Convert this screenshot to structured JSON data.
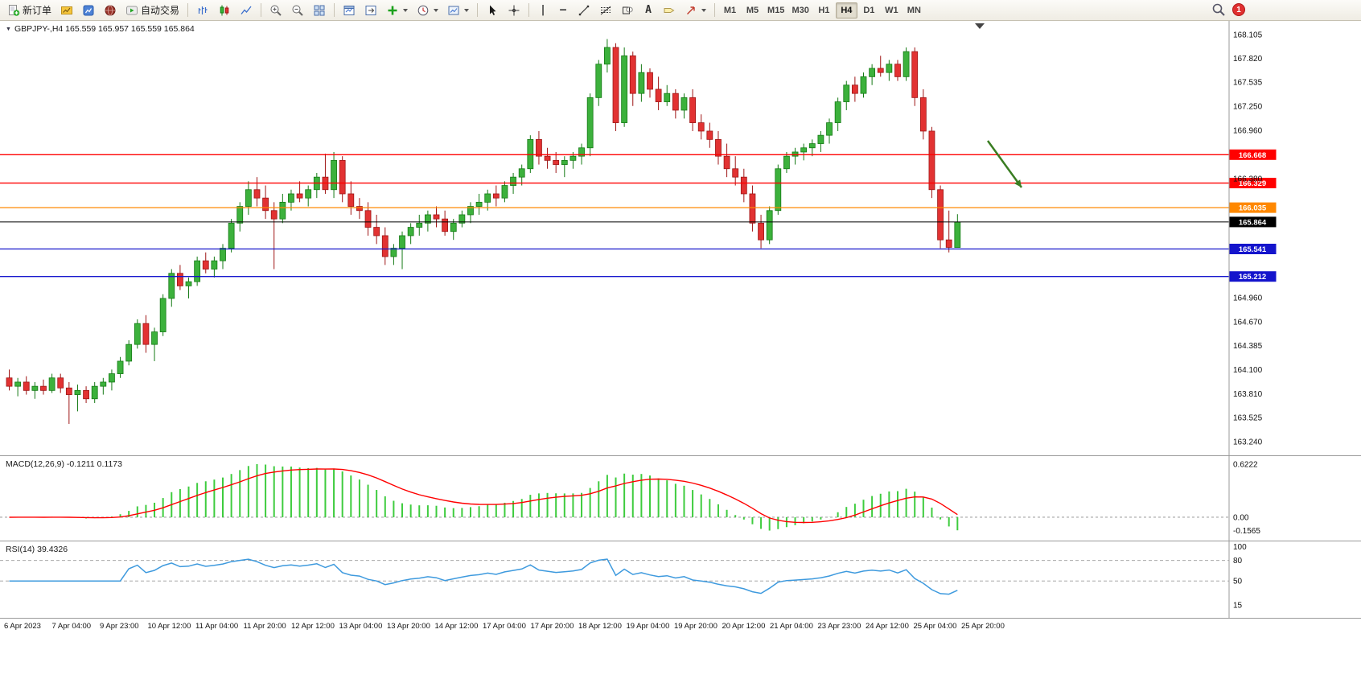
{
  "window": {
    "badge_count": "1"
  },
  "toolbar": {
    "new_order_label": "新订单",
    "autotrading_label": "自动交易",
    "icon_glyphs": {
      "vertical_line": "|",
      "horizontal_line": "—",
      "text": "A"
    },
    "timeframes": [
      "M1",
      "M5",
      "M15",
      "M30",
      "H1",
      "H4",
      "D1",
      "W1",
      "MN"
    ],
    "active_timeframe": "H4"
  },
  "chart": {
    "collapse_arrow": "▼",
    "symbol_label": "GBPJPY-,H4",
    "ohlc": "165.559 165.957 165.559 165.864"
  },
  "chart_data": {
    "type": "candlestick",
    "symbol": "GBPJPY",
    "timeframe": "H4",
    "ylim": [
      163.24,
      168.105
    ],
    "price_axis_ticks": [
      "168.105",
      "167.820",
      "167.535",
      "167.250",
      "166.960",
      "166.380",
      "164.960",
      "164.670",
      "164.385",
      "164.100",
      "163.810",
      "163.525",
      "163.240"
    ],
    "levels": [
      {
        "label": "166.668",
        "value": 166.668,
        "color": "#ff0000",
        "current": false
      },
      {
        "label": "166.329",
        "value": 166.329,
        "color": "#ff0000",
        "current": false
      },
      {
        "label": "166.035",
        "value": 166.035,
        "color": "#ff8800",
        "current": false
      },
      {
        "label": "165.864",
        "value": 165.864,
        "color": "#000000",
        "current": true
      },
      {
        "label": "165.541",
        "value": 165.541,
        "color": "#1414cc",
        "current": false
      },
      {
        "label": "165.212",
        "value": 165.212,
        "color": "#1414cc",
        "current": false
      }
    ],
    "current_price": "165.864",
    "time_labels": [
      "6 Apr 2023",
      "7 Apr 04:00",
      "9 Apr 23:00",
      "10 Apr 12:00",
      "11 Apr 04:00",
      "11 Apr 20:00",
      "12 Apr 12:00",
      "13 Apr 04:00",
      "13 Apr 20:00",
      "14 Apr 12:00",
      "17 Apr 04:00",
      "17 Apr 20:00",
      "18 Apr 12:00",
      "19 Apr 04:00",
      "19 Apr 20:00",
      "20 Apr 12:00",
      "21 Apr 04:00",
      "23 Apr 23:00",
      "24 Apr 12:00",
      "25 Apr 04:00",
      "25 Apr 20:00"
    ],
    "candles": [
      [
        164.0,
        164.1,
        163.85,
        163.9
      ],
      [
        163.9,
        164.0,
        163.78,
        163.95
      ],
      [
        163.95,
        164.02,
        163.8,
        163.85
      ],
      [
        163.85,
        163.95,
        163.75,
        163.9
      ],
      [
        163.9,
        163.98,
        163.8,
        163.85
      ],
      [
        163.85,
        164.05,
        163.82,
        164.0
      ],
      [
        164.0,
        164.05,
        163.82,
        163.88
      ],
      [
        163.88,
        163.95,
        163.45,
        163.8
      ],
      [
        163.8,
        163.92,
        163.6,
        163.85
      ],
      [
        163.85,
        163.9,
        163.7,
        163.75
      ],
      [
        163.75,
        163.95,
        163.7,
        163.9
      ],
      [
        163.9,
        164.0,
        163.8,
        163.95
      ],
      [
        163.95,
        164.1,
        163.85,
        164.05
      ],
      [
        164.05,
        164.25,
        164.0,
        164.2
      ],
      [
        164.2,
        164.45,
        164.15,
        164.4
      ],
      [
        164.4,
        164.7,
        164.35,
        164.65
      ],
      [
        164.65,
        164.75,
        164.3,
        164.4
      ],
      [
        164.4,
        164.6,
        164.2,
        164.55
      ],
      [
        164.55,
        165.0,
        164.5,
        164.95
      ],
      [
        164.95,
        165.3,
        164.85,
        165.25
      ],
      [
        165.25,
        165.35,
        165.05,
        165.1
      ],
      [
        165.1,
        165.2,
        164.95,
        165.15
      ],
      [
        165.15,
        165.45,
        165.1,
        165.4
      ],
      [
        165.4,
        165.5,
        165.25,
        165.3
      ],
      [
        165.3,
        165.45,
        165.2,
        165.4
      ],
      [
        165.4,
        165.6,
        165.3,
        165.55
      ],
      [
        165.55,
        165.9,
        165.5,
        165.85
      ],
      [
        165.85,
        166.1,
        165.75,
        166.05
      ],
      [
        166.05,
        166.35,
        165.95,
        166.25
      ],
      [
        166.25,
        166.4,
        166.05,
        166.15
      ],
      [
        166.15,
        166.3,
        165.9,
        166.0
      ],
      [
        166.0,
        166.1,
        165.3,
        165.9
      ],
      [
        165.9,
        166.2,
        165.85,
        166.1
      ],
      [
        166.1,
        166.25,
        166.0,
        166.2
      ],
      [
        166.2,
        166.35,
        166.1,
        166.15
      ],
      [
        166.15,
        166.3,
        166.05,
        166.25
      ],
      [
        166.25,
        166.45,
        166.15,
        166.4
      ],
      [
        166.4,
        166.68,
        166.2,
        166.25
      ],
      [
        166.25,
        166.7,
        166.15,
        166.6
      ],
      [
        166.6,
        166.65,
        166.1,
        166.2
      ],
      [
        166.2,
        166.35,
        165.95,
        166.05
      ],
      [
        166.05,
        166.15,
        165.9,
        166.0
      ],
      [
        166.0,
        166.1,
        165.7,
        165.8
      ],
      [
        165.8,
        165.95,
        165.6,
        165.7
      ],
      [
        165.7,
        165.8,
        165.35,
        165.45
      ],
      [
        165.45,
        165.6,
        165.35,
        165.55
      ],
      [
        165.55,
        165.75,
        165.3,
        165.7
      ],
      [
        165.7,
        165.85,
        165.6,
        165.8
      ],
      [
        165.8,
        165.95,
        165.7,
        165.85
      ],
      [
        165.85,
        166.0,
        165.75,
        165.95
      ],
      [
        165.95,
        166.05,
        165.8,
        165.9
      ],
      [
        165.9,
        166.0,
        165.7,
        165.75
      ],
      [
        165.75,
        165.9,
        165.65,
        165.85
      ],
      [
        165.85,
        166.0,
        165.8,
        165.95
      ],
      [
        165.95,
        166.1,
        165.85,
        166.05
      ],
      [
        166.05,
        166.2,
        165.95,
        166.1
      ],
      [
        166.1,
        166.25,
        166.0,
        166.2
      ],
      [
        166.2,
        166.3,
        166.05,
        166.15
      ],
      [
        166.15,
        166.35,
        166.1,
        166.3
      ],
      [
        166.3,
        166.45,
        166.2,
        166.4
      ],
      [
        166.4,
        166.55,
        166.3,
        166.5
      ],
      [
        166.5,
        166.9,
        166.45,
        166.85
      ],
      [
        166.85,
        166.95,
        166.55,
        166.65
      ],
      [
        166.65,
        166.75,
        166.5,
        166.6
      ],
      [
        166.6,
        166.7,
        166.45,
        166.55
      ],
      [
        166.55,
        166.65,
        166.4,
        166.6
      ],
      [
        166.6,
        166.7,
        166.5,
        166.65
      ],
      [
        166.65,
        166.8,
        166.55,
        166.75
      ],
      [
        166.75,
        167.4,
        166.65,
        167.35
      ],
      [
        167.35,
        167.8,
        167.25,
        167.75
      ],
      [
        167.75,
        168.05,
        167.65,
        167.95
      ],
      [
        167.95,
        168.0,
        166.95,
        167.05
      ],
      [
        167.05,
        167.95,
        167.0,
        167.85
      ],
      [
        167.85,
        167.9,
        167.25,
        167.4
      ],
      [
        167.4,
        167.75,
        167.3,
        167.65
      ],
      [
        167.65,
        167.7,
        167.35,
        167.45
      ],
      [
        167.45,
        167.6,
        167.2,
        167.3
      ],
      [
        167.3,
        167.5,
        167.25,
        167.4
      ],
      [
        167.4,
        167.45,
        167.1,
        167.2
      ],
      [
        167.2,
        167.4,
        167.1,
        167.35
      ],
      [
        167.35,
        167.45,
        166.95,
        167.05
      ],
      [
        167.05,
        167.15,
        166.85,
        166.95
      ],
      [
        166.95,
        167.05,
        166.75,
        166.85
      ],
      [
        166.85,
        166.95,
        166.55,
        166.65
      ],
      [
        166.65,
        166.8,
        166.4,
        166.5
      ],
      [
        166.5,
        166.65,
        166.3,
        166.4
      ],
      [
        166.4,
        166.5,
        166.1,
        166.2
      ],
      [
        166.2,
        166.3,
        165.75,
        165.85
      ],
      [
        165.85,
        165.95,
        165.55,
        165.65
      ],
      [
        165.65,
        166.05,
        165.6,
        166.0
      ],
      [
        166.0,
        166.55,
        165.95,
        166.5
      ],
      [
        166.5,
        166.7,
        166.45,
        166.65
      ],
      [
        166.65,
        166.75,
        166.55,
        166.7
      ],
      [
        166.7,
        166.8,
        166.6,
        166.75
      ],
      [
        166.75,
        166.85,
        166.65,
        166.8
      ],
      [
        166.8,
        166.95,
        166.7,
        166.9
      ],
      [
        166.9,
        167.1,
        166.8,
        167.05
      ],
      [
        167.05,
        167.35,
        166.95,
        167.3
      ],
      [
        167.3,
        167.55,
        167.2,
        167.5
      ],
      [
        167.5,
        167.6,
        167.3,
        167.4
      ],
      [
        167.4,
        167.65,
        167.35,
        167.6
      ],
      [
        167.6,
        167.75,
        167.5,
        167.7
      ],
      [
        167.7,
        167.85,
        167.6,
        167.65
      ],
      [
        167.65,
        167.8,
        167.55,
        167.75
      ],
      [
        167.75,
        167.8,
        167.55,
        167.6
      ],
      [
        167.6,
        167.95,
        167.55,
        167.9
      ],
      [
        167.9,
        167.95,
        167.25,
        167.35
      ],
      [
        167.35,
        167.45,
        166.85,
        166.95
      ],
      [
        166.95,
        167.0,
        166.15,
        166.25
      ],
      [
        166.25,
        166.3,
        165.55,
        165.65
      ],
      [
        165.65,
        166.0,
        165.5,
        165.56
      ],
      [
        165.559,
        165.957,
        165.559,
        165.864
      ]
    ],
    "arrow": {
      "type": "arrow",
      "from": [
        1228,
        149
      ],
      "to": [
        1270,
        207
      ],
      "color": "#3a7d22"
    },
    "shift_marker_x": 1218,
    "macd": {
      "label": "MACD(12,26,9)",
      "values_label": "-0.1211 0.1173",
      "scale": [
        "0.6222",
        "0.00",
        "-0.1565"
      ],
      "params": [
        12,
        26,
        9
      ]
    },
    "rsi": {
      "label": "RSI(14)",
      "value_label": "39.4326",
      "scale": [
        "100",
        "80",
        "50",
        "15"
      ],
      "period": 14,
      "levels": [
        80,
        50
      ]
    },
    "colors": {
      "up": "#3cb13c",
      "down": "#e23232",
      "up_stroke": "#157a15",
      "down_stroke": "#9e1515",
      "macd_hist": "#3ecc3e",
      "macd_signal": "#ff0000",
      "rsi_line": "#3e9ade",
      "level_red": "#ff0000",
      "level_orange": "#ff8800",
      "level_blue": "#1414cc",
      "arrow": "#3a7d22"
    }
  }
}
